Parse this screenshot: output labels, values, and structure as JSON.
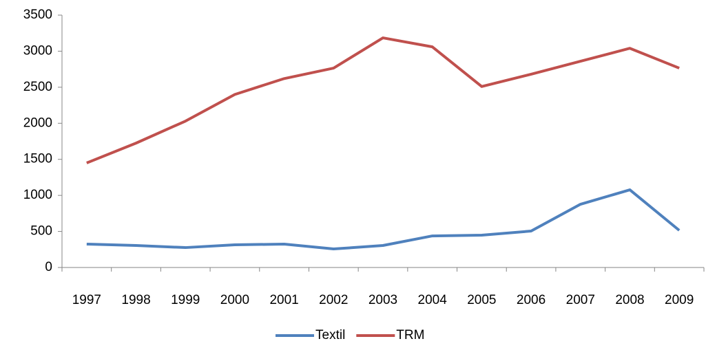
{
  "chart_data": {
    "type": "line",
    "categories": [
      "1997",
      "1998",
      "1999",
      "2000",
      "2001",
      "2002",
      "2003",
      "2004",
      "2005",
      "2006",
      "2007",
      "2008",
      "2009"
    ],
    "series": [
      {
        "name": "Textil",
        "color": "#4f81bd",
        "values": [
          324,
          305,
          276,
          315,
          324,
          257,
          305,
          438,
          448,
          505,
          877,
          1077,
          515
        ]
      },
      {
        "name": "TRM",
        "color": "#c0504d",
        "values": [
          1450,
          1725,
          2030,
          2400,
          2620,
          2765,
          3185,
          3060,
          2510,
          2680,
          2860,
          3040,
          2765
        ]
      }
    ],
    "ylim": [
      0,
      3500
    ],
    "yticks": [
      0,
      500,
      1000,
      1500,
      2000,
      2500,
      3000,
      3500
    ],
    "grid": false,
    "legend": "bottom"
  }
}
